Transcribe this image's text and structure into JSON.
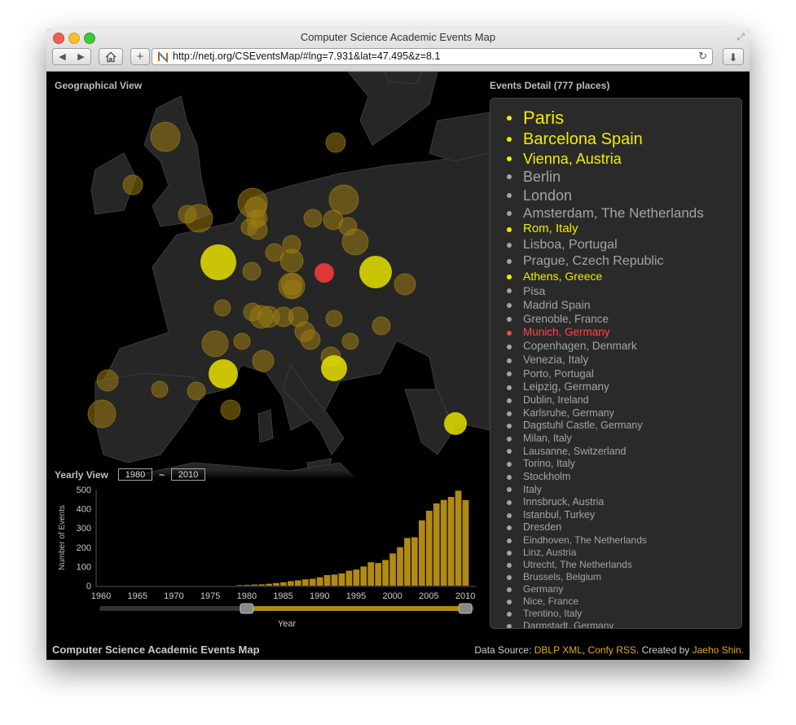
{
  "window": {
    "title": "Computer Science Academic Events Map",
    "url": "http://netj.org/CSEventsMap/#lng=7.931&lat=47.495&z=8.1"
  },
  "map": {
    "label": "Geographical View",
    "circles": [
      {
        "color": "#9a7a10",
        "r": 18
      },
      {
        "color": "#9a7a10",
        "r": 12
      },
      {
        "color": "#9a7a10",
        "r": 12
      },
      {
        "color": "#9a7a10",
        "r": 18
      },
      {
        "color": "#9a7a10",
        "r": 13
      },
      {
        "color": "#9a7a10",
        "r": 11
      },
      {
        "color": "#9a7a10",
        "r": 17
      },
      {
        "color": "#9a7a10",
        "r": 11
      },
      {
        "color": "#9a7a10",
        "r": 18
      },
      {
        "color": "#9a7a10",
        "r": 11
      },
      {
        "color": "#9a7a10",
        "r": 10
      },
      {
        "color": "#9a7a10",
        "r": 12
      },
      {
        "color": "#9a7a10",
        "r": 11
      },
      {
        "color": "#9a7a10",
        "r": 10
      },
      {
        "color": "#9a7a10",
        "r": 12
      },
      {
        "color": "#9a7a10",
        "r": 16
      },
      {
        "color": "#9a7a10",
        "r": 11
      },
      {
        "color": "#9a7a10",
        "r": 11
      },
      {
        "color": "#9a7a10",
        "r": 14
      },
      {
        "color": "#9a7a10",
        "r": 11
      },
      {
        "color": "#9a7a10",
        "r": 13
      },
      {
        "color": "#9a7a10",
        "r": 13
      },
      {
        "color": "#9a7a10",
        "r": 11
      },
      {
        "color": "#9a7a10",
        "r": 16
      },
      {
        "color": "#9a7a10",
        "r": 10
      },
      {
        "color": "#9a7a10",
        "r": 11
      },
      {
        "color": "#9a7a10",
        "r": 13
      },
      {
        "color": "#9a7a10",
        "r": 10
      },
      {
        "color": "#9a7a10",
        "r": 14
      },
      {
        "color": "#9a7a10",
        "r": 12
      },
      {
        "color": "#9a7a10",
        "r": 10
      },
      {
        "color": "#9a7a10",
        "r": 12
      },
      {
        "color": "#9a7a10",
        "r": 16
      },
      {
        "color": "#9a7a10",
        "r": 10
      },
      {
        "color": "#9a7a10",
        "r": 12
      },
      {
        "color": "#9a7a10",
        "r": 13
      },
      {
        "color": "#9a7a10",
        "r": 17
      },
      {
        "color": "#9a7a10",
        "r": 11
      },
      {
        "color": "#9a7a10",
        "r": 12
      },
      {
        "color": "#9a7a10",
        "r": 13
      },
      {
        "color": "#9a7a10",
        "r": 10
      },
      {
        "color": "#9a7a10",
        "r": 12
      },
      {
        "color": "#9a7a10",
        "r": 12
      },
      {
        "color": "#9a7a10",
        "r": 11
      },
      {
        "color": "#e6e000",
        "r": 22
      },
      {
        "color": "#e6e000",
        "r": 18
      },
      {
        "color": "#e6e000",
        "r": 20
      },
      {
        "color": "#e6e000",
        "r": 16
      },
      {
        "color": "#e6e000",
        "r": 14
      },
      {
        "color": "#ff3b3b",
        "r": 12
      }
    ]
  },
  "events": {
    "label": "Events Detail (777 places)",
    "items": [
      {
        "name": "Paris",
        "color": "#f2ec00",
        "size": 22
      },
      {
        "name": "Barcelona Spain",
        "color": "#f2ec00",
        "size": 20
      },
      {
        "name": "Vienna, Austria",
        "color": "#f2ec00",
        "size": 18
      },
      {
        "name": "Berlin",
        "color": "#a4a4a4",
        "size": 18
      },
      {
        "name": "London",
        "color": "#a4a4a4",
        "size": 18
      },
      {
        "name": "Amsterdam, The Netherlands",
        "color": "#a4a4a4",
        "size": 17
      },
      {
        "name": "Rom, Italy",
        "color": "#f2ec00",
        "size": 15
      },
      {
        "name": "Lisboa, Portugal",
        "color": "#a4a4a4",
        "size": 16
      },
      {
        "name": "Prague, Czech Republic",
        "color": "#a4a4a4",
        "size": 16
      },
      {
        "name": "Athens, Greece",
        "color": "#f2ec00",
        "size": 14
      },
      {
        "name": "Pisa",
        "color": "#a4a4a4",
        "size": 14
      },
      {
        "name": "Madrid Spain",
        "color": "#a4a4a4",
        "size": 14
      },
      {
        "name": "Grenoble, France",
        "color": "#a4a4a4",
        "size": 13.5
      },
      {
        "name": "Munich, Germany",
        "color": "#ff4545",
        "size": 13.5
      },
      {
        "name": "Copenhagen, Denmark",
        "color": "#a4a4a4",
        "size": 13.5
      },
      {
        "name": "Venezia, Italy",
        "color": "#a4a4a4",
        "size": 13.5
      },
      {
        "name": "Porto, Portugal",
        "color": "#a4a4a4",
        "size": 13
      },
      {
        "name": "Leipzig, Germany",
        "color": "#a4a4a4",
        "size": 13.5
      },
      {
        "name": "Dublin, Ireland",
        "color": "#a4a4a4",
        "size": 12.5
      },
      {
        "name": "Karlsruhe, Germany",
        "color": "#a4a4a4",
        "size": 12.5
      },
      {
        "name": "Dagstuhl Castle, Germany",
        "color": "#a4a4a4",
        "size": 12.5
      },
      {
        "name": "Milan, Italy",
        "color": "#a4a4a4",
        "size": 12.5
      },
      {
        "name": "Lausanne, Switzerland",
        "color": "#a4a4a4",
        "size": 12.5
      },
      {
        "name": "Torino, Italy",
        "color": "#a4a4a4",
        "size": 12.5
      },
      {
        "name": "Stockholm",
        "color": "#a4a4a4",
        "size": 12.5
      },
      {
        "name": "Italy",
        "color": "#a4a4a4",
        "size": 12.5
      },
      {
        "name": "Innsbruck, Austria",
        "color": "#a4a4a4",
        "size": 12.5
      },
      {
        "name": "Istanbul, Turkey",
        "color": "#a4a4a4",
        "size": 12.5
      },
      {
        "name": "Dresden",
        "color": "#a4a4a4",
        "size": 12.5
      },
      {
        "name": "Eindhoven, The Netherlands",
        "color": "#a4a4a4",
        "size": 12
      },
      {
        "name": "Linz, Austria",
        "color": "#a4a4a4",
        "size": 12
      },
      {
        "name": "Utrecht, The Netherlands",
        "color": "#a4a4a4",
        "size": 12
      },
      {
        "name": "Brussels, Belgium",
        "color": "#a4a4a4",
        "size": 12
      },
      {
        "name": "Germany",
        "color": "#a4a4a4",
        "size": 12
      },
      {
        "name": "Nice, France",
        "color": "#a4a4a4",
        "size": 12
      },
      {
        "name": "Trentino, Italy",
        "color": "#a4a4a4",
        "size": 12
      },
      {
        "name": "Darmstadt, Germany",
        "color": "#a4a4a4",
        "size": 12
      }
    ]
  },
  "yearly": {
    "label": "Yearly View",
    "from": "1980",
    "to": "2010",
    "separator": "~"
  },
  "chart_data": {
    "type": "bar",
    "xlabel": "Year",
    "ylabel": "Number of Events",
    "xlim": [
      1960,
      2012
    ],
    "ylim": [
      0,
      500
    ],
    "yticks": [
      0,
      100,
      200,
      300,
      400,
      500
    ],
    "xticks": [
      1960,
      1965,
      1970,
      1975,
      1980,
      1985,
      1990,
      1995,
      2000,
      2005,
      2010
    ],
    "bar_color": "#b08a14",
    "x": [
      1979,
      1980,
      1981,
      1982,
      1983,
      1984,
      1985,
      1986,
      1987,
      1988,
      1989,
      1990,
      1991,
      1992,
      1993,
      1994,
      1995,
      1996,
      1997,
      1998,
      1999,
      2000,
      2001,
      2002,
      2003,
      2004,
      2005,
      2006,
      2007,
      2008,
      2009,
      2010
    ],
    "values": [
      3,
      4,
      6,
      7,
      10,
      14,
      18,
      24,
      28,
      33,
      36,
      44,
      55,
      58,
      64,
      78,
      84,
      100,
      122,
      118,
      134,
      168,
      200,
      248,
      252,
      340,
      390,
      428,
      446,
      462,
      494,
      445
    ],
    "selected_range": [
      1980,
      2010
    ]
  },
  "footer": {
    "title": "Computer Science Academic Events Map",
    "source_prefix": "Data Source: ",
    "link_dblp": "DBLP XML",
    "comma": ", ",
    "link_confy": "Confy RSS",
    "created_by": ". Created by ",
    "link_author": "Jaeho Shin",
    "period": "."
  }
}
